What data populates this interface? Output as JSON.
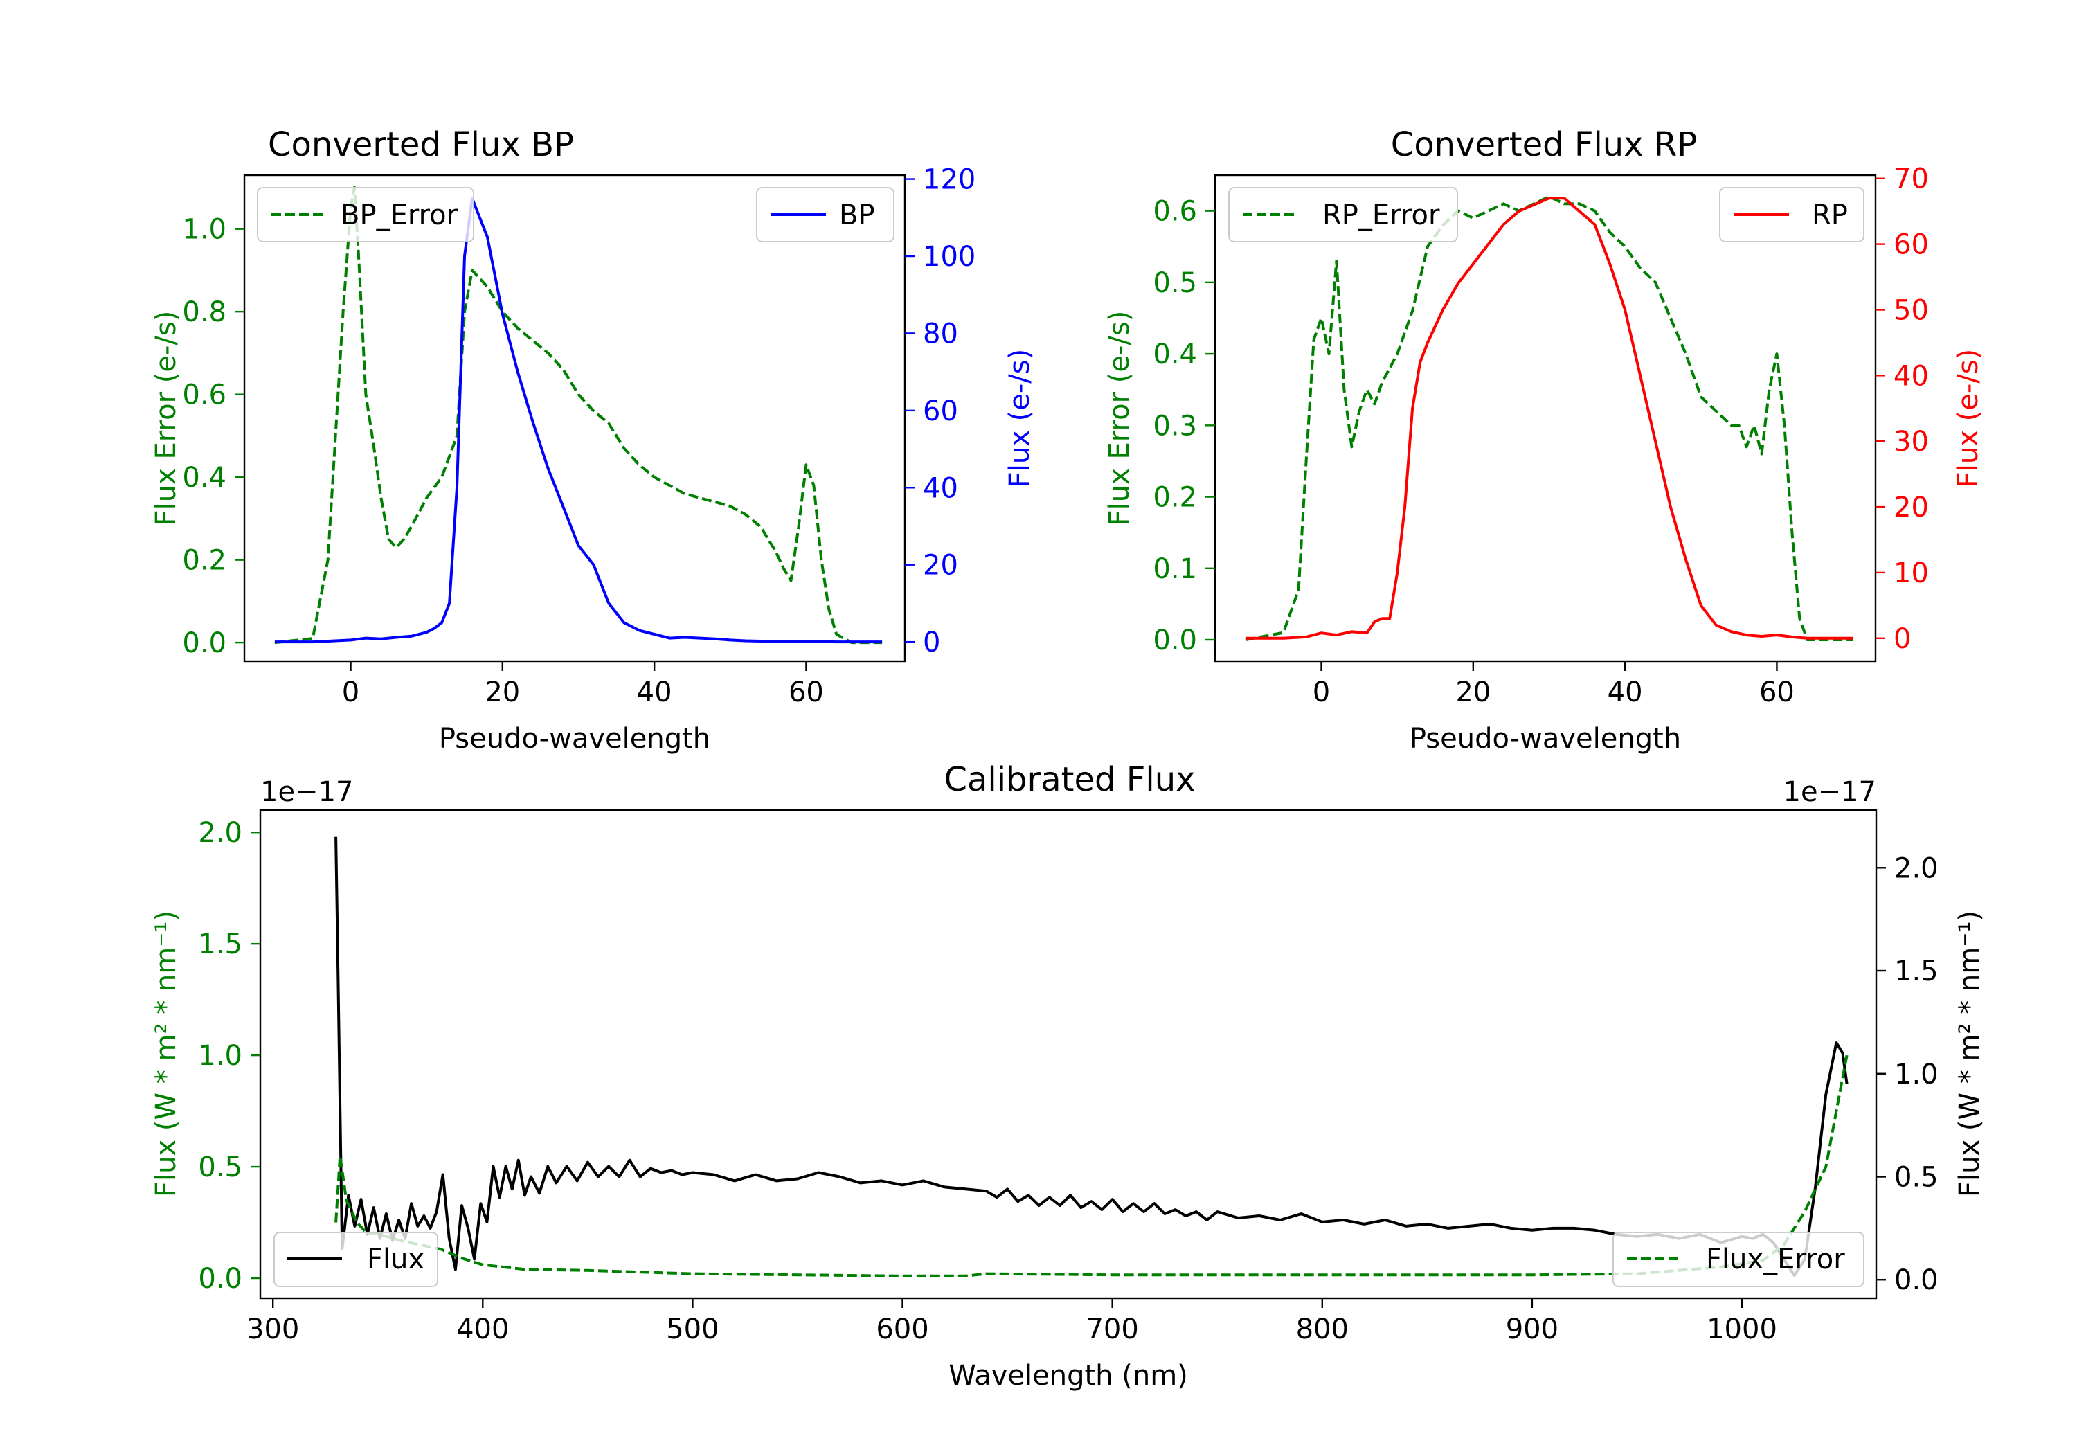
{
  "colors": {
    "green": "#008000",
    "blue": "#0000ff",
    "red": "#ff0000",
    "black": "#000000"
  },
  "chart_data": [
    {
      "id": "bp",
      "type": "line",
      "title": "Converted Flux BP",
      "xlabel": "Pseudo-wavelength",
      "xlim": [
        -14,
        73
      ],
      "xticks": [
        0,
        20,
        40,
        60
      ],
      "left_axis": {
        "label": "Flux Error (e-/s)",
        "color": "#008000",
        "ylim": [
          -0.045,
          1.13
        ],
        "ticks": [
          0.0,
          0.2,
          0.4,
          0.6,
          0.8,
          1.0
        ],
        "tick_labels": [
          "0.0",
          "0.2",
          "0.4",
          "0.6",
          "0.8",
          "1.0"
        ]
      },
      "right_axis": {
        "label": "Flux (e-/s)",
        "color": "#0000ff",
        "ylim": [
          -5,
          121
        ],
        "ticks": [
          0,
          20,
          40,
          60,
          80,
          100,
          120
        ],
        "tick_labels": [
          "0",
          "20",
          "40",
          "60",
          "80",
          "100",
          "120"
        ]
      },
      "series": [
        {
          "name": "BP_Error",
          "axis": "left",
          "style": "dashed",
          "color": "#008000",
          "x": [
            -10,
            -5,
            -3,
            -1,
            0,
            0.5,
            1,
            2,
            3,
            4,
            5,
            6,
            7,
            8,
            10,
            12,
            14,
            15,
            16,
            18,
            20,
            22,
            24,
            26,
            28,
            30,
            32,
            34,
            36,
            38,
            40,
            42,
            44,
            46,
            48,
            50,
            52,
            54,
            56,
            57,
            58,
            59,
            60,
            61,
            62,
            63,
            64,
            66,
            68,
            70
          ],
          "y": [
            0,
            0.01,
            0.2,
            0.8,
            1.05,
            1.1,
            0.95,
            0.6,
            0.48,
            0.35,
            0.25,
            0.23,
            0.25,
            0.28,
            0.35,
            0.4,
            0.5,
            0.8,
            0.9,
            0.86,
            0.8,
            0.76,
            0.73,
            0.7,
            0.66,
            0.6,
            0.56,
            0.53,
            0.47,
            0.43,
            0.4,
            0.38,
            0.36,
            0.35,
            0.34,
            0.33,
            0.31,
            0.28,
            0.22,
            0.18,
            0.15,
            0.28,
            0.43,
            0.38,
            0.2,
            0.08,
            0.02,
            0,
            0,
            0
          ]
        },
        {
          "name": "BP",
          "axis": "right",
          "style": "solid",
          "color": "#0000ff",
          "x": [
            -10,
            -5,
            0,
            2,
            4,
            6,
            8,
            10,
            11,
            12,
            13,
            14,
            15,
            16,
            17,
            18,
            19,
            20,
            22,
            24,
            26,
            28,
            30,
            32,
            34,
            36,
            38,
            40,
            42,
            44,
            46,
            48,
            50,
            52,
            54,
            56,
            58,
            60,
            62,
            64,
            66,
            68,
            70
          ],
          "y": [
            0,
            0,
            0.5,
            1,
            0.8,
            1.2,
            1.5,
            2.5,
            3.5,
            5,
            10,
            40,
            100,
            115,
            110,
            105,
            95,
            85,
            70,
            57,
            45,
            35,
            25,
            20,
            10,
            5,
            3,
            2,
            1,
            1.2,
            1,
            0.8,
            0.5,
            0.3,
            0.2,
            0.2,
            0.1,
            0.2,
            0.1,
            0,
            0,
            0,
            0
          ]
        }
      ]
    },
    {
      "id": "rp",
      "type": "line",
      "title": "Converted Flux RP",
      "xlabel": "Pseudo-wavelength",
      "xlim": [
        -14,
        73
      ],
      "xticks": [
        0,
        20,
        40,
        60
      ],
      "left_axis": {
        "label": "Flux Error (e-/s)",
        "color": "#008000",
        "ylim": [
          -0.03,
          0.65
        ],
        "ticks": [
          0.0,
          0.1,
          0.2,
          0.3,
          0.4,
          0.5,
          0.6
        ],
        "tick_labels": [
          "0.0",
          "0.1",
          "0.2",
          "0.3",
          "0.4",
          "0.5",
          "0.6"
        ]
      },
      "right_axis": {
        "label": "Flux (e-/s)",
        "color": "#ff0000",
        "ylim": [
          -3.5,
          70.5
        ],
        "ticks": [
          0,
          10,
          20,
          30,
          40,
          50,
          60,
          70
        ],
        "tick_labels": [
          "0",
          "10",
          "20",
          "30",
          "40",
          "50",
          "60",
          "70"
        ]
      },
      "series": [
        {
          "name": "RP_Error",
          "axis": "left",
          "style": "dashed",
          "color": "#008000",
          "x": [
            -10,
            -5,
            -3,
            -2,
            -1,
            0,
            1,
            2,
            3,
            4,
            5,
            6,
            7,
            8,
            10,
            12,
            14,
            16,
            18,
            20,
            22,
            24,
            26,
            28,
            30,
            32,
            34,
            36,
            38,
            40,
            42,
            44,
            46,
            48,
            50,
            52,
            54,
            55,
            56,
            57,
            58,
            59,
            60,
            61,
            62,
            63,
            64,
            66,
            68,
            70
          ],
          "y": [
            0,
            0.01,
            0.07,
            0.25,
            0.42,
            0.45,
            0.4,
            0.53,
            0.35,
            0.27,
            0.32,
            0.35,
            0.33,
            0.36,
            0.4,
            0.46,
            0.55,
            0.58,
            0.6,
            0.59,
            0.6,
            0.61,
            0.6,
            0.61,
            0.62,
            0.61,
            0.61,
            0.6,
            0.57,
            0.55,
            0.52,
            0.5,
            0.45,
            0.4,
            0.34,
            0.32,
            0.3,
            0.3,
            0.27,
            0.3,
            0.26,
            0.35,
            0.4,
            0.3,
            0.15,
            0.03,
            0,
            0,
            0,
            0
          ]
        },
        {
          "name": "RP",
          "axis": "right",
          "style": "solid",
          "color": "#ff0000",
          "x": [
            -10,
            -5,
            -2,
            0,
            2,
            4,
            6,
            7,
            8,
            9,
            10,
            11,
            12,
            13,
            14,
            16,
            18,
            20,
            22,
            24,
            26,
            28,
            30,
            32,
            34,
            36,
            38,
            40,
            42,
            44,
            46,
            48,
            50,
            52,
            54,
            56,
            58,
            60,
            62,
            64,
            66,
            68,
            70
          ],
          "y": [
            0,
            0,
            0.2,
            0.8,
            0.5,
            1,
            0.8,
            2.5,
            3,
            3,
            10,
            20,
            35,
            42,
            45,
            50,
            54,
            57,
            60,
            63,
            65,
            66,
            67,
            67,
            65,
            63,
            57,
            50,
            40,
            30,
            20,
            12,
            5,
            2,
            1,
            0.5,
            0.3,
            0.5,
            0.2,
            0,
            0,
            0,
            0
          ]
        }
      ]
    },
    {
      "id": "calibrated",
      "type": "line",
      "title": "Calibrated Flux",
      "xlabel": "Wavelength (nm)",
      "xlim": [
        294,
        1064
      ],
      "xticks": [
        300,
        400,
        500,
        600,
        700,
        800,
        900,
        1000
      ],
      "left_axis": {
        "label": "Flux (W * m² * nm⁻¹)",
        "color": "#008000",
        "offset_text": "1e−17",
        "ylim": [
          -0.09,
          2.1
        ],
        "ticks": [
          0.0,
          0.5,
          1.0,
          1.5,
          2.0
        ],
        "tick_labels": [
          "0.0",
          "0.5",
          "1.0",
          "1.5",
          "2.0"
        ]
      },
      "right_axis": {
        "label": "Flux (W * m² * nm⁻¹)",
        "color": "#000000",
        "offset_text": "1e−17",
        "ylim": [
          -0.09,
          2.28
        ],
        "ticks": [
          0.0,
          0.5,
          1.0,
          1.5,
          2.0
        ],
        "tick_labels": [
          "0.0",
          "0.5",
          "1.0",
          "1.5",
          "2.0"
        ]
      },
      "series": [
        {
          "name": "Flux",
          "axis": "right",
          "style": "solid",
          "color": "#000000",
          "x": [
            330,
            331,
            333,
            336,
            339,
            342,
            345,
            348,
            351,
            354,
            357,
            360,
            363,
            366,
            369,
            372,
            375,
            378,
            381,
            384,
            387,
            390,
            393,
            396,
            399,
            402,
            405,
            408,
            411,
            414,
            417,
            420,
            423,
            427,
            431,
            435,
            440,
            445,
            450,
            455,
            460,
            465,
            470,
            475,
            480,
            485,
            490,
            495,
            500,
            510,
            520,
            530,
            540,
            550,
            560,
            570,
            580,
            590,
            600,
            610,
            620,
            630,
            640,
            645,
            650,
            655,
            660,
            665,
            670,
            675,
            680,
            685,
            690,
            695,
            700,
            705,
            710,
            715,
            720,
            725,
            730,
            735,
            740,
            745,
            750,
            760,
            770,
            780,
            790,
            800,
            810,
            820,
            830,
            840,
            850,
            860,
            870,
            880,
            890,
            900,
            910,
            920,
            930,
            940,
            950,
            960,
            970,
            980,
            990,
            1000,
            1005,
            1010,
            1015,
            1020,
            1025,
            1030,
            1035,
            1040,
            1045,
            1048,
            1050
          ],
          "y": [
            2.15,
            1.5,
            0.15,
            0.41,
            0.26,
            0.39,
            0.22,
            0.35,
            0.2,
            0.32,
            0.19,
            0.29,
            0.2,
            0.37,
            0.26,
            0.31,
            0.25,
            0.33,
            0.51,
            0.2,
            0.05,
            0.36,
            0.25,
            0.1,
            0.37,
            0.28,
            0.55,
            0.4,
            0.55,
            0.44,
            0.58,
            0.41,
            0.5,
            0.42,
            0.55,
            0.47,
            0.55,
            0.48,
            0.57,
            0.5,
            0.55,
            0.5,
            0.58,
            0.5,
            0.54,
            0.52,
            0.53,
            0.51,
            0.52,
            0.51,
            0.48,
            0.51,
            0.48,
            0.49,
            0.52,
            0.5,
            0.47,
            0.48,
            0.46,
            0.48,
            0.45,
            0.44,
            0.43,
            0.4,
            0.44,
            0.38,
            0.41,
            0.36,
            0.4,
            0.36,
            0.41,
            0.35,
            0.38,
            0.34,
            0.39,
            0.33,
            0.37,
            0.33,
            0.37,
            0.32,
            0.34,
            0.31,
            0.33,
            0.29,
            0.33,
            0.3,
            0.31,
            0.29,
            0.32,
            0.28,
            0.29,
            0.27,
            0.29,
            0.26,
            0.27,
            0.25,
            0.26,
            0.27,
            0.25,
            0.24,
            0.25,
            0.25,
            0.24,
            0.22,
            0.21,
            0.22,
            0.2,
            0.22,
            0.18,
            0.21,
            0.2,
            0.22,
            0.18,
            0.1,
            0.02,
            0.1,
            0.45,
            0.9,
            1.15,
            1.1,
            0.95
          ]
        },
        {
          "name": "Flux_Error",
          "axis": "left",
          "style": "dashed",
          "color": "#008000",
          "x": [
            330,
            332,
            335,
            340,
            345,
            350,
            360,
            370,
            380,
            390,
            400,
            420,
            450,
            500,
            550,
            600,
            630,
            640,
            700,
            800,
            900,
            950,
            990,
            1010,
            1020,
            1030,
            1040,
            1045,
            1050
          ],
          "y": [
            0.25,
            0.55,
            0.35,
            0.25,
            0.2,
            0.2,
            0.17,
            0.15,
            0.13,
            0.09,
            0.06,
            0.04,
            0.035,
            0.02,
            0.015,
            0.01,
            0.01,
            0.02,
            0.015,
            0.015,
            0.015,
            0.02,
            0.05,
            0.08,
            0.15,
            0.3,
            0.5,
            0.75,
            1.0
          ]
        }
      ]
    }
  ]
}
